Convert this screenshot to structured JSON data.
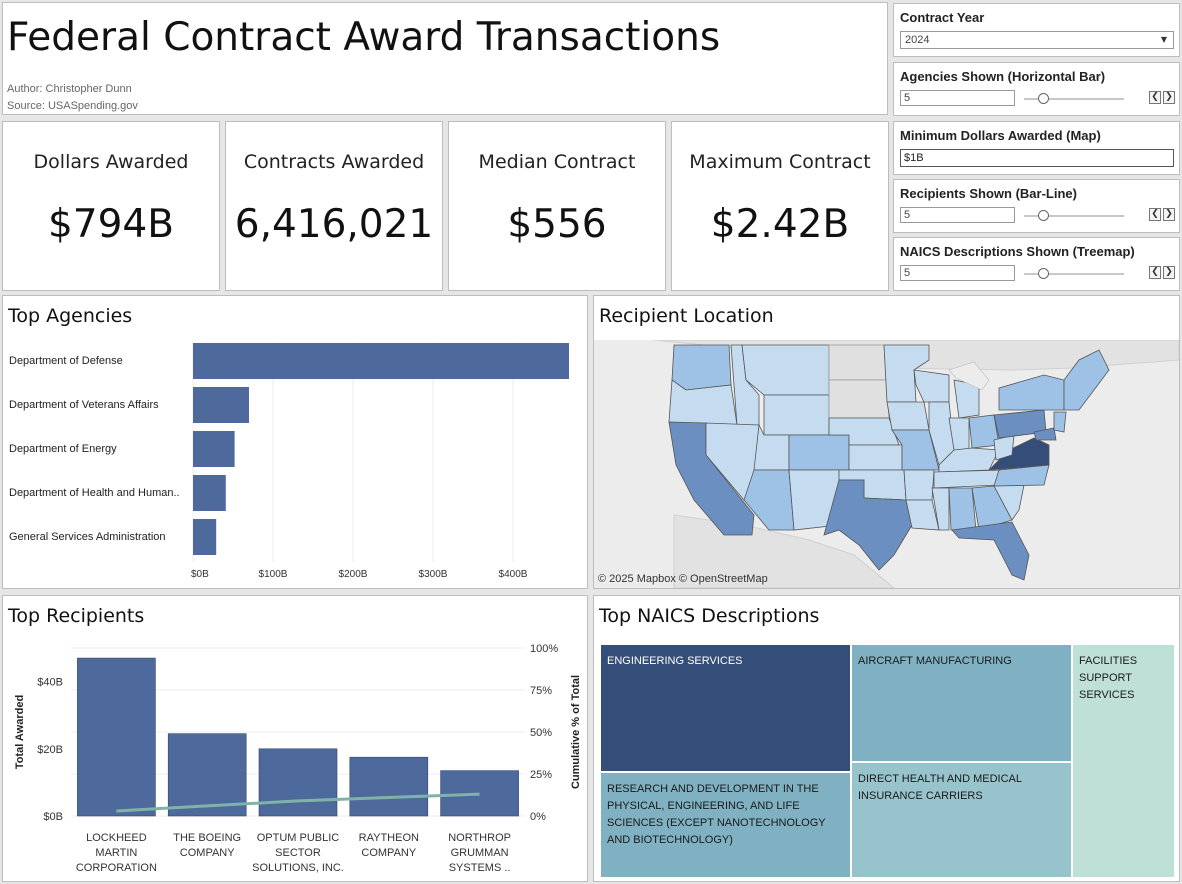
{
  "header": {
    "title": "Federal Contract Award Transactions",
    "author": "Author: Christopher Dunn",
    "source": "Source: USASpending.gov"
  },
  "kpis": [
    {
      "label": "Dollars Awarded",
      "value": "$794B"
    },
    {
      "label": "Contracts Awarded",
      "value": "6,416,021"
    },
    {
      "label": "Median Contract",
      "value": "$556"
    },
    {
      "label": "Maximum Contract",
      "value": "$2.42B"
    }
  ],
  "controls": {
    "contract_year": {
      "label": "Contract Year",
      "value": "2024"
    },
    "agencies_shown": {
      "label": "Agencies Shown (Horizontal Bar)",
      "value": "5"
    },
    "min_dollars": {
      "label": "Minimum Dollars Awarded (Map)",
      "value": "$1B"
    },
    "recipients_shown": {
      "label": "Recipients Shown (Bar-Line)",
      "value": "5"
    },
    "naics_shown": {
      "label": "NAICS Descriptions Shown (Treemap)",
      "value": "5"
    }
  },
  "top_agencies": {
    "title": "Top Agencies",
    "chart_data": {
      "type": "bar",
      "orientation": "horizontal",
      "categories": [
        "Department of Defense",
        "Department of Veterans Affairs",
        "Department of Energy",
        "Department of Health and Human..",
        "General Services Administration"
      ],
      "values": [
        470,
        70,
        52,
        41,
        29
      ],
      "x_ticks": [
        "$0B",
        "$100B",
        "$200B",
        "$300B",
        "$400B"
      ],
      "xlim": [
        0,
        470
      ],
      "color": "#4e6a9c"
    }
  },
  "recipient_location": {
    "title": "Recipient Location",
    "attribution": "© 2025 Mapbox  © OpenStreetMap"
  },
  "top_recipients": {
    "title": "Top Recipients",
    "chart_data": {
      "type": "bar",
      "categories": [
        "LOCKHEED MARTIN CORPORATION",
        "THE BOEING COMPANY",
        "OPTUM PUBLIC SECTOR SOLUTIONS, INC.",
        "RAYTHEON COMPANY",
        "NORTHROP GRUMMAN SYSTEMS .."
      ],
      "category_lines": [
        [
          "LOCKHEED",
          "MARTIN",
          "CORPORATION"
        ],
        [
          "THE BOEING",
          "COMPANY"
        ],
        [
          "OPTUM PUBLIC",
          "SECTOR",
          "SOLUTIONS, INC."
        ],
        [
          "RAYTHEON",
          "COMPANY"
        ],
        [
          "NORTHROP",
          "GRUMMAN",
          "SYSTEMS .."
        ]
      ],
      "series": [
        {
          "name": "Total Awarded",
          "values": [
            47.0,
            24.5,
            20.0,
            17.5,
            13.5
          ]
        },
        {
          "name": "Cumulative % of Total",
          "values": [
            0.03,
            0.06,
            0.09,
            0.11,
            0.13
          ]
        }
      ],
      "ylabel": "Total Awarded",
      "y2label": "Cumulative % of Total",
      "y_ticks": [
        "$0B",
        "$20B",
        "$40B"
      ],
      "y_tick_values": [
        0,
        20,
        40
      ],
      "y2_ticks": [
        "0%",
        "25%",
        "50%",
        "75%",
        "100%"
      ],
      "ylim": [
        0,
        50
      ],
      "bar_color": "#4e6a9c",
      "line_color": "#7fb3a8"
    }
  },
  "top_naics": {
    "title": "Top NAICS Descriptions",
    "cells": [
      {
        "label": "ENGINEERING SERVICES",
        "color": "#354e79",
        "text_color": "#ffffff"
      },
      {
        "label": "RESEARCH AND DEVELOPMENT IN THE PHYSICAL, ENGINEERING, AND LIFE SCIENCES (EXCEPT NANOTECHNOLOGY AND BIOTECHNOLOGY)",
        "color": "#7fb1c2",
        "text_color": "#1a1a1a"
      },
      {
        "label": "AIRCRAFT MANUFACTURING",
        "color": "#7fb1c2",
        "text_color": "#1a1a1a"
      },
      {
        "label": "DIRECT HEALTH AND MEDICAL INSURANCE CARRIERS",
        "color": "#97c4cc",
        "text_color": "#1a1a1a"
      },
      {
        "label": "FACILITIES SUPPORT SERVICES",
        "color": "#bfe0d6",
        "text_color": "#1a1a1a"
      }
    ]
  }
}
